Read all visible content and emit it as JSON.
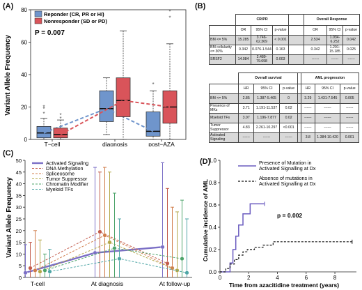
{
  "panels": {
    "a": "(A)",
    "b": "(B)",
    "c": "(C)",
    "d": "(D)"
  },
  "panel_a": {
    "ylabel": "Variant Allele Frequency",
    "pvalue": "P = 0.007",
    "legend": [
      {
        "label": "Reponder (CR, PR or HI)",
        "color": "#6f95cc"
      },
      {
        "label": "Nonresponder (SD or PD)",
        "color": "#d9545a"
      }
    ],
    "chart_data": {
      "type": "box",
      "ylim": [
        0,
        80
      ],
      "yticks": [
        0,
        20,
        40,
        60,
        80
      ],
      "categories": [
        "T−cell",
        "diagnosis",
        "post−AZA"
      ],
      "series": [
        {
          "name": "Reponder (CR, PR or HI)",
          "color": "#6f95cc",
          "boxes": [
            {
              "min": 0,
              "q1": 1,
              "median": 4,
              "q3": 8,
              "max": 13,
              "outliers": [
                16,
                19,
                20
              ]
            },
            {
              "min": 3,
              "q1": 11,
              "median": 19,
              "q3": 30,
              "max": 38,
              "outliers": []
            },
            {
              "min": 0,
              "q1": 2,
              "median": 5,
              "q3": 17,
              "max": 30,
              "outliers": [
                34
              ]
            }
          ]
        },
        {
          "name": "Nonresponder (SD or PD)",
          "color": "#d9545a",
          "boxes": [
            {
              "min": 0,
              "q1": 1,
              "median": 3,
              "q3": 7,
              "max": 12,
              "outliers": [
                13,
                15
              ]
            },
            {
              "min": 0,
              "q1": 14,
              "median": 24,
              "q3": 38,
              "max": 67,
              "outliers": []
            },
            {
              "min": 0,
              "q1": 10,
              "median": 20,
              "q3": 30,
              "max": 59,
              "outliers": [
                75,
                79
              ]
            }
          ]
        }
      ]
    }
  },
  "panel_b": {
    "table1": {
      "group_headers": [
        "CR/PR",
        "Overall Response"
      ],
      "sub_headers": [
        "OR",
        "95% CI",
        "p-value",
        "OR",
        "95% CI",
        "p-value"
      ],
      "rows": [
        {
          "label": "BM <= 5%",
          "cells": [
            "15.285",
            "3.746-62.369",
            "< 0.001",
            "2.534",
            "1.034-6.252",
            "0.042"
          ]
        },
        {
          "label": "BM cellularity <= 30%",
          "cells": [
            "0.342",
            "0.076-1.544",
            "0.163",
            "0.342",
            "1.201-15.185",
            "0.025"
          ]
        },
        {
          "label": "SRSF2",
          "cells": [
            "14.084",
            "2.489-79.698",
            "0.003",
            "------",
            "------",
            "------"
          ]
        }
      ]
    },
    "table2": {
      "group_headers": [
        "Overall survival",
        "AML progression"
      ],
      "sub_headers": [
        "HR",
        "95% CI",
        "p-value",
        "HR",
        "95% CI",
        "p-value"
      ],
      "rows": [
        {
          "label": "BM <= 5%",
          "cells": [
            "2.85",
            "1.387-5.465",
            "0",
            "3.29",
            "1.431-7.545",
            "0.005"
          ]
        },
        {
          "label": "Presence of MKs",
          "cells": [
            "3.71",
            "1.191-11.537",
            "0.02",
            "------",
            "------",
            "------"
          ]
        },
        {
          "label": "Myeloid TFs",
          "cells": [
            "3.07",
            "1.196-7.877",
            "0.02",
            "------",
            "------",
            "------"
          ]
        },
        {
          "label": "Tumor Suppressor",
          "cells": [
            "4.83",
            "2.261-10.297",
            "<0.001",
            "------",
            "------",
            "------"
          ]
        },
        {
          "label": "Activated Signaling",
          "cells": [
            "------",
            "------",
            "------",
            "3.8",
            "1.384-10.420",
            "0.001"
          ]
        }
      ]
    }
  },
  "panel_c": {
    "ylabel": "Variant Allele Frequency",
    "chart_data": {
      "type": "line",
      "ylim": [
        0,
        50
      ],
      "yticks": [
        0,
        5,
        10,
        15,
        20,
        25,
        30,
        35,
        40,
        45,
        50
      ],
      "categories": [
        "T-cell",
        "At diagnosis",
        "At follow-up"
      ],
      "series": [
        {
          "name": "Activated Signaling",
          "color": "#7b6fc6",
          "values": [
            2,
            10.5,
            13
          ],
          "err": [
            [
              0,
              14
            ],
            [
              0,
              47
            ],
            [
              0,
              49
            ]
          ]
        },
        {
          "name": "DNA Methylation",
          "color": "#c25a4a",
          "values": [
            4,
            19.5,
            6
          ],
          "err": [
            [
              0,
              15
            ],
            [
              0,
              45
            ],
            [
              0,
              38
            ]
          ]
        },
        {
          "name": "Spliceosome",
          "color": "#d07c4a",
          "values": [
            3,
            18,
            4
          ],
          "err": [
            [
              0,
              20
            ],
            [
              0,
              47
            ],
            [
              0,
              30
            ]
          ]
        },
        {
          "name": "Tumor Suppressor",
          "color": "#b4a84a",
          "values": [
            2.5,
            15,
            3
          ],
          "err": [
            [
              0,
              16
            ],
            [
              0,
              45
            ],
            [
              0,
              28
            ]
          ]
        },
        {
          "name": "Chromatin Modifier",
          "color": "#4da46a",
          "values": [
            3,
            12.5,
            8
          ],
          "err": [
            [
              0,
              10
            ],
            [
              0,
              36
            ],
            [
              0,
              33
            ]
          ]
        },
        {
          "name": "Myeloid TFs",
          "color": "#4fa6a6",
          "values": [
            2.5,
            8,
            2
          ],
          "err": [
            [
              0,
              12
            ],
            [
              0,
              25
            ],
            [
              0,
              25
            ]
          ]
        }
      ]
    }
  },
  "panel_d": {
    "ylabel": "Cumulative incidence of AML",
    "xlabel": "Time from azacitidine treatment (years)",
    "pvalue": "p = 0.002",
    "legend": [
      {
        "label": "Presence of Mutation in Activated Signalling at Dx",
        "style": "solid",
        "color": "#6a5bbf"
      },
      {
        "label": "Absence of mutations in Activated Signalling at Dx",
        "style": "dashed",
        "color": "#111111"
      }
    ],
    "chart_data": {
      "type": "line",
      "xlim": [
        0,
        9.5
      ],
      "ylim": [
        0,
        1
      ],
      "xticks": [
        0,
        2,
        4,
        6,
        8
      ],
      "yticks": [
        0,
        0.2,
        0.4,
        0.6,
        0.8,
        1.0
      ],
      "series": [
        {
          "name": "Presence of Mutation in Activated Signalling at Dx",
          "points": [
            [
              0,
              0
            ],
            [
              0.7,
              0
            ],
            [
              0.7,
              0.08
            ],
            [
              0.9,
              0.08
            ],
            [
              0.9,
              0.2
            ],
            [
              1.1,
              0.2
            ],
            [
              1.1,
              0.32
            ],
            [
              1.3,
              0.32
            ],
            [
              1.3,
              0.42
            ],
            [
              1.6,
              0.42
            ],
            [
              1.6,
              0.52
            ],
            [
              2.1,
              0.52
            ],
            [
              2.1,
              0.61
            ],
            [
              3.1,
              0.61
            ]
          ]
        },
        {
          "name": "Absence of mutations in Activated Signalling at Dx",
          "points": [
            [
              0,
              0
            ],
            [
              0.4,
              0
            ],
            [
              0.4,
              0.03
            ],
            [
              0.7,
              0.03
            ],
            [
              0.7,
              0.07
            ],
            [
              1.0,
              0.07
            ],
            [
              1.0,
              0.11
            ],
            [
              1.3,
              0.11
            ],
            [
              1.3,
              0.15
            ],
            [
              1.6,
              0.15
            ],
            [
              1.6,
              0.18
            ],
            [
              1.9,
              0.18
            ],
            [
              1.9,
              0.2
            ],
            [
              2.4,
              0.2
            ],
            [
              2.4,
              0.22
            ],
            [
              3.0,
              0.22
            ],
            [
              3.0,
              0.24
            ],
            [
              3.7,
              0.24
            ],
            [
              3.7,
              0.27
            ],
            [
              9.2,
              0.27
            ]
          ]
        }
      ]
    }
  }
}
